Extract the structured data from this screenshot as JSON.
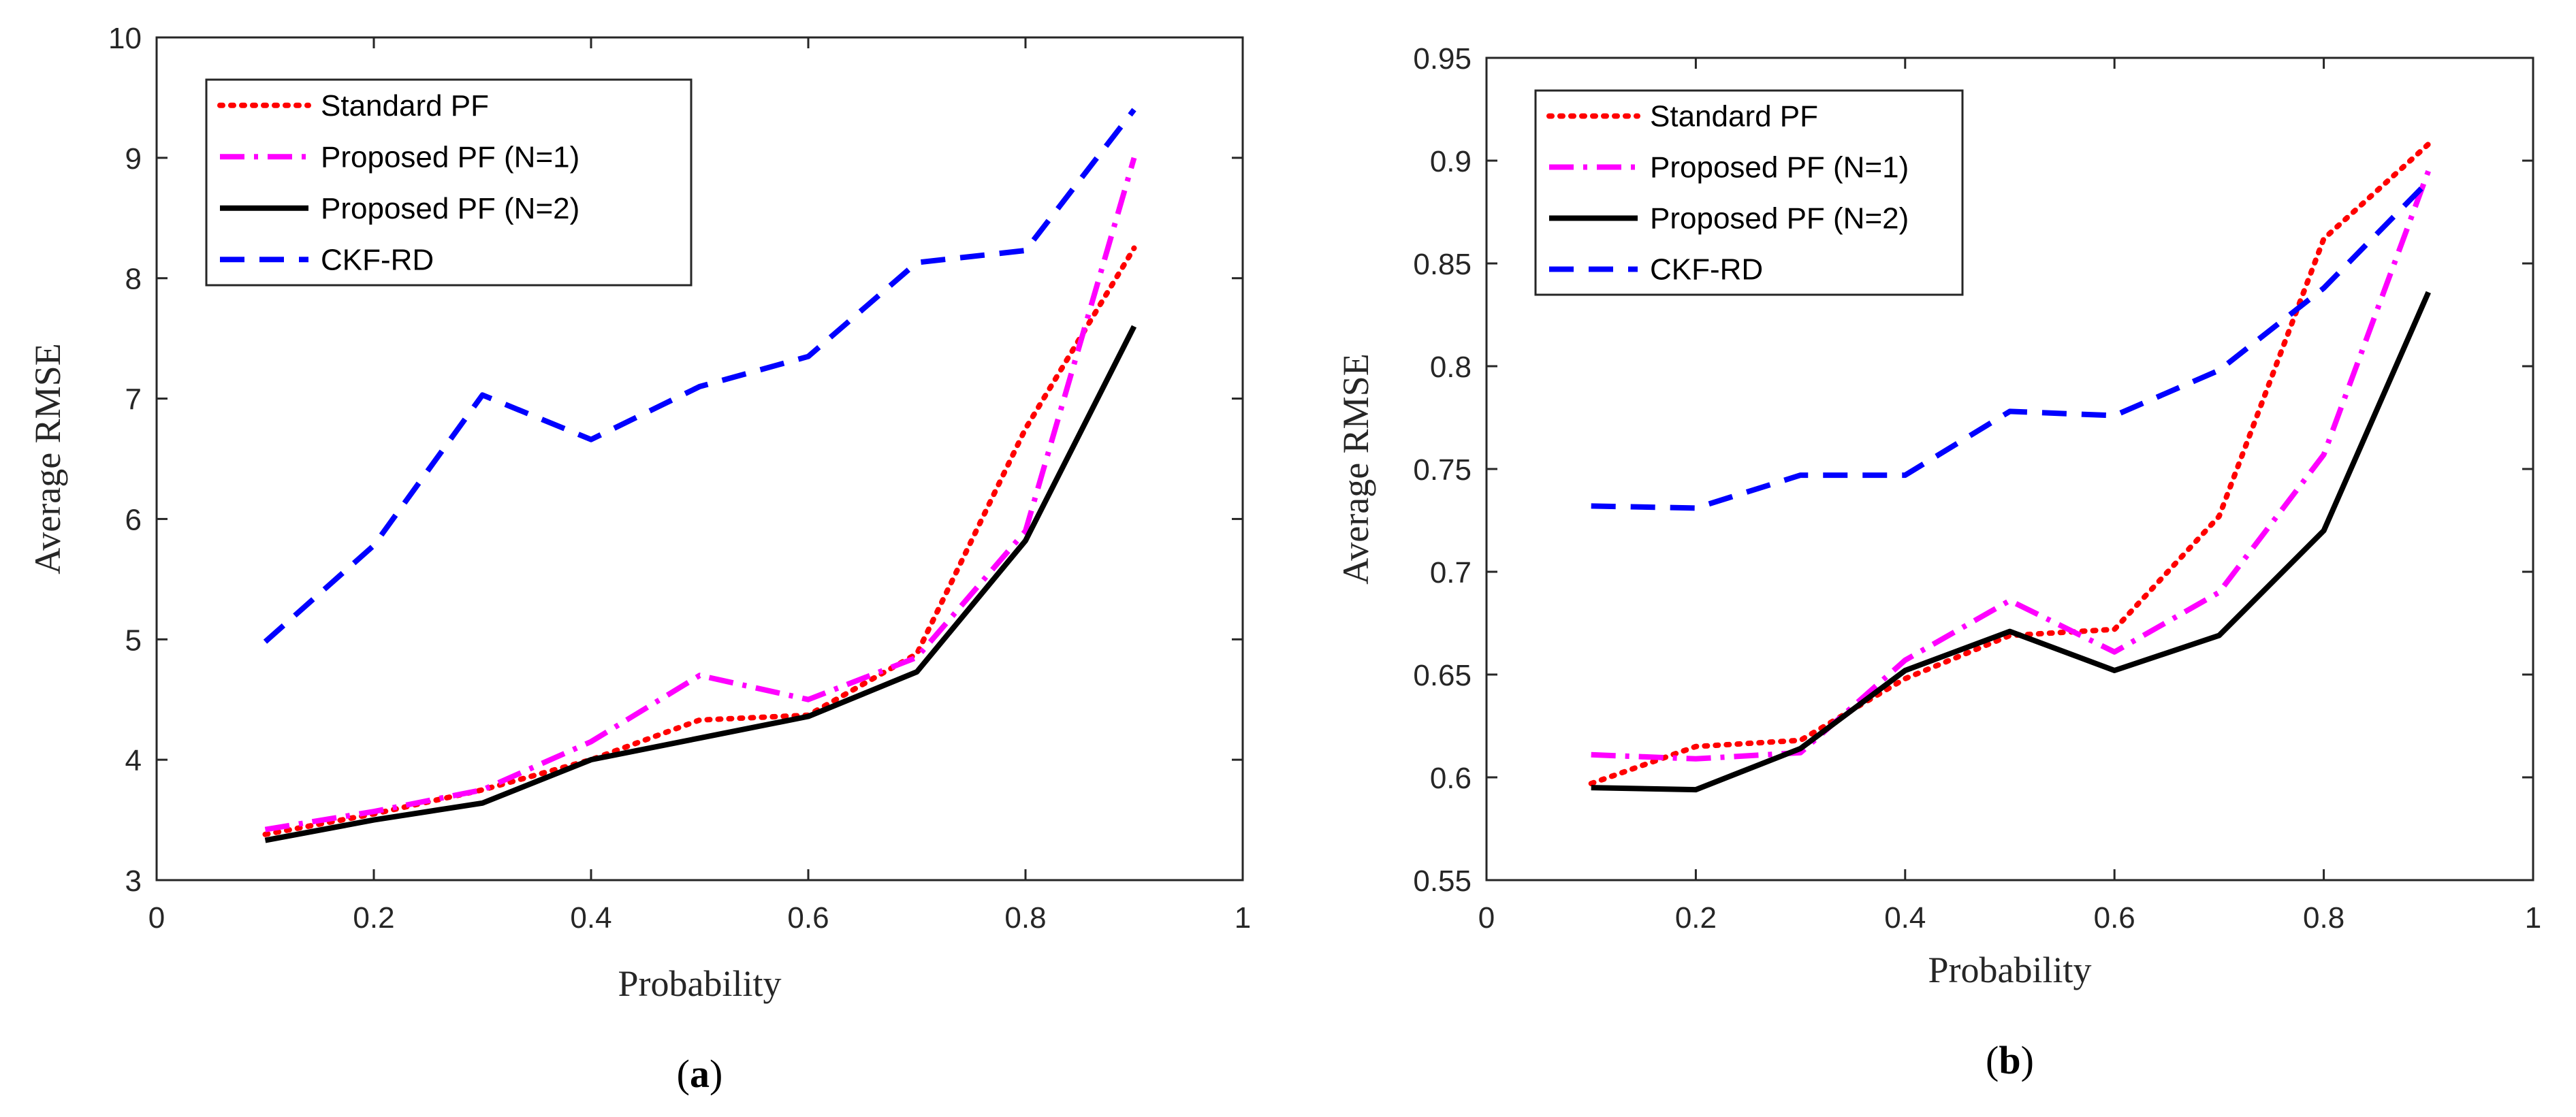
{
  "chart_data": [
    {
      "type": "line",
      "panel_label": "a",
      "xlabel": "Probability",
      "ylabel": "Average RMSE",
      "xlim": [
        0,
        1
      ],
      "ylim": [
        3,
        10
      ],
      "xticks": [
        0,
        0.2,
        0.4,
        0.6,
        0.8,
        1
      ],
      "xtick_labels": [
        "0",
        "0.2",
        "0.4",
        "0.6",
        "0.8",
        "1"
      ],
      "yticks": [
        3,
        4,
        5,
        6,
        7,
        8,
        9,
        10
      ],
      "ytick_labels": [
        "3",
        "4",
        "5",
        "6",
        "7",
        "8",
        "9",
        "10"
      ],
      "legend_position": "top-left",
      "grid": false,
      "x": [
        0.1,
        0.2,
        0.3,
        0.4,
        0.5,
        0.6,
        0.7,
        0.8,
        0.9
      ],
      "series": [
        {
          "name": "Standard PF",
          "color": "#ff0000",
          "style": "dotted",
          "values": [
            3.38,
            3.55,
            3.75,
            4.0,
            4.33,
            4.37,
            4.88,
            6.75,
            8.25
          ]
        },
        {
          "name": "Proposed PF (N=1)",
          "color": "#ff00ff",
          "style": "dashdot",
          "values": [
            3.42,
            3.57,
            3.75,
            4.15,
            4.7,
            4.5,
            4.85,
            5.9,
            9.0
          ]
        },
        {
          "name": "Proposed PF (N=2)",
          "color": "#000000",
          "style": "solid",
          "values": [
            3.33,
            3.5,
            3.64,
            4.0,
            4.18,
            4.36,
            4.73,
            5.82,
            7.6
          ]
        },
        {
          "name": "CKF-RD",
          "color": "#0000ff",
          "style": "dashed",
          "values": [
            4.98,
            5.78,
            7.03,
            6.66,
            7.1,
            7.35,
            8.13,
            8.23,
            9.4
          ]
        }
      ]
    },
    {
      "type": "line",
      "panel_label": "b",
      "xlabel": "Probability",
      "ylabel": "Average RMSE",
      "xlim": [
        0,
        1
      ],
      "ylim": [
        0.55,
        0.95
      ],
      "xticks": [
        0,
        0.2,
        0.4,
        0.6,
        0.8,
        1
      ],
      "xtick_labels": [
        "0",
        "0.2",
        "0.4",
        "0.6",
        "0.8",
        "1"
      ],
      "yticks": [
        0.55,
        0.6,
        0.65,
        0.7,
        0.75,
        0.8,
        0.85,
        0.9,
        0.95
      ],
      "ytick_labels": [
        "0.55",
        "0.6",
        "0.65",
        "0.7",
        "0.75",
        "0.8",
        "0.85",
        "0.9",
        "0.95"
      ],
      "legend_position": "top-left",
      "grid": false,
      "x": [
        0.1,
        0.2,
        0.3,
        0.4,
        0.5,
        0.6,
        0.7,
        0.8,
        0.9
      ],
      "series": [
        {
          "name": "Standard PF",
          "color": "#ff0000",
          "style": "dotted",
          "values": [
            0.597,
            0.615,
            0.618,
            0.648,
            0.669,
            0.672,
            0.727,
            0.862,
            0.908
          ]
        },
        {
          "name": "Proposed PF (N=1)",
          "color": "#ff00ff",
          "style": "dashdot",
          "values": [
            0.611,
            0.609,
            0.612,
            0.657,
            0.686,
            0.661,
            0.69,
            0.757,
            0.895
          ]
        },
        {
          "name": "Proposed PF (N=2)",
          "color": "#000000",
          "style": "solid",
          "values": [
            0.595,
            0.594,
            0.614,
            0.652,
            0.671,
            0.652,
            0.669,
            0.72,
            0.836
          ]
        },
        {
          "name": "CKF-RD",
          "color": "#0000ff",
          "style": "dashed",
          "values": [
            0.732,
            0.731,
            0.747,
            0.747,
            0.778,
            0.776,
            0.798,
            0.838,
            0.89
          ]
        }
      ]
    }
  ]
}
